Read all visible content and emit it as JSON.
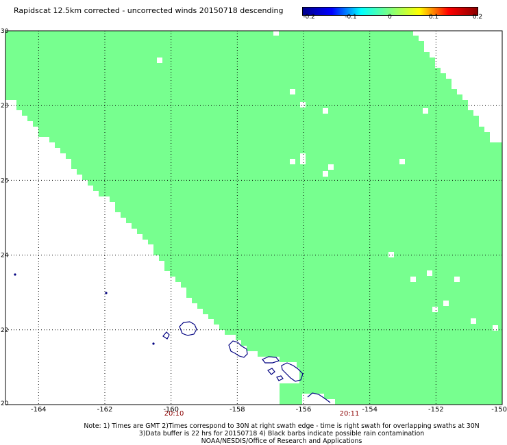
{
  "title": "Rapidscat 12.5km corrected - uncorrected winds 20150718 descending",
  "colorbar": {
    "labels": [
      "-0.2",
      "-0.1",
      "0",
      "0.1",
      "0.2"
    ],
    "values": [
      -0.2,
      -0.1,
      0,
      0.1,
      0.2
    ],
    "colors": [
      "#00008b",
      "#0000ff",
      "#00ffff",
      "#7fff7f",
      "#ffff00",
      "#ff0000",
      "#8b0000"
    ]
  },
  "map": {
    "lat_labels": [
      "30",
      "28",
      "26",
      "24",
      "22",
      "20"
    ],
    "lon_labels": [
      "-164",
      "-162",
      "-160",
      "-158",
      "-156",
      "-154",
      "-152",
      "-150"
    ],
    "lat_range": [
      20,
      30
    ],
    "lon_range": [
      -165,
      -150
    ],
    "swath_color": "#77ff8f",
    "coast_color": "#000080",
    "time_labels": [
      "20:10",
      "20:11"
    ]
  },
  "notes": {
    "line1": "Note: 1) Times are GMT 2)Times correspond to 30N at right swath edge - time is right swath for overlapping swaths at 30N",
    "line2": "3)Data buffer is 22 hrs for 20150718 4) Black barbs indicate possible rain contamination",
    "line3": "NOAA/NESDIS/Office of Research and Applications"
  }
}
